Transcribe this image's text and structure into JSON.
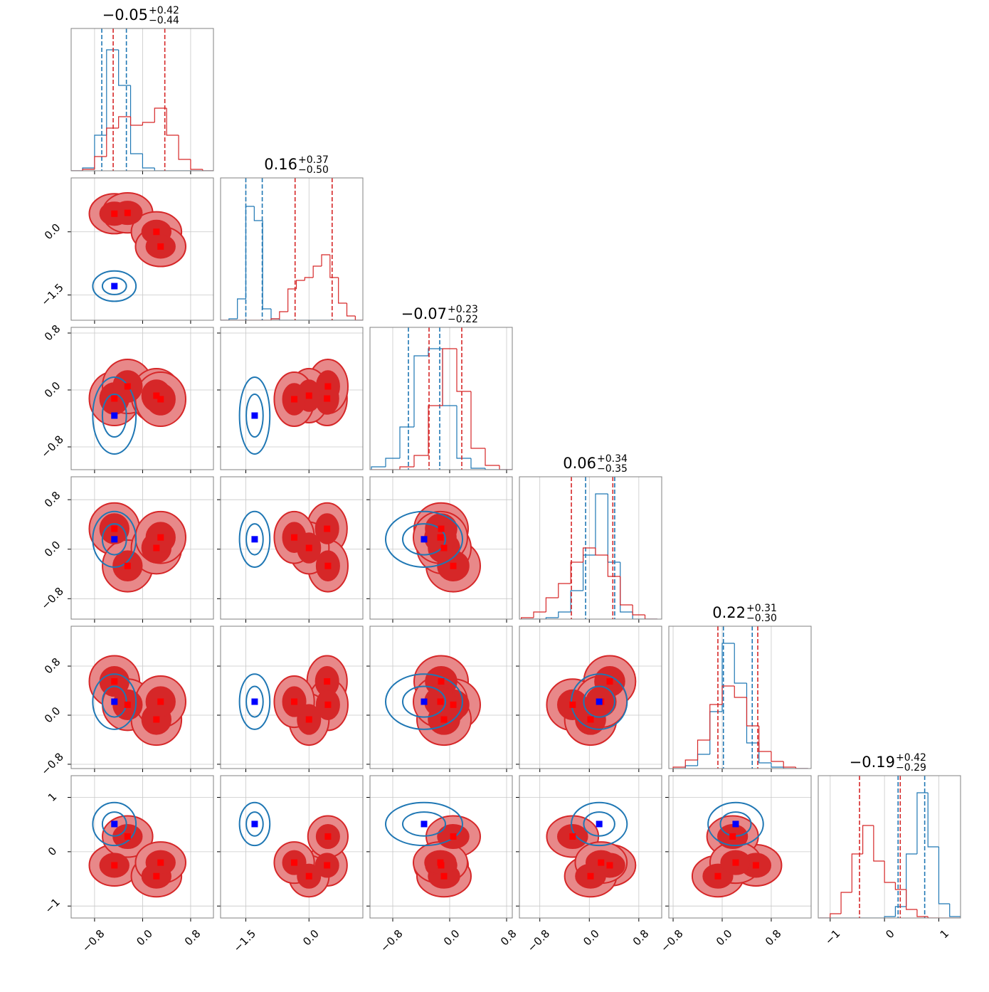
{
  "chart_data": {
    "type": "corner",
    "ylim": [
      0,
      100
    ],
    "params": [
      {
        "xlim": [
          -1.19,
          1.18
        ],
        "ticks": [
          {
            "value": -0.8,
            "label": "−0.8"
          },
          {
            "value": 0,
            "label": "0.0"
          },
          0.8
        ],
        "title": {
          "value": "−0.05",
          "plus": "+0.42",
          "minus": "−0.44"
        },
        "bins": [
          -1.2,
          -1.0,
          -0.8,
          -0.6,
          -0.4,
          -0.2,
          0,
          0.2,
          0.4,
          0.6,
          0.8,
          1.0,
          1.2
        ]
      },
      {
        "xlim": [
          -2.1,
          1.28
        ],
        "ticks": [
          {
            "value": -1.5,
            "label": "−1.5"
          },
          {
            "value": 0,
            "label": "0.0"
          }
        ],
        "title": {
          "value": "0.16",
          "plus": "+0.37",
          "minus": "−0.50"
        },
        "bins": [
          -2.1,
          -1.9,
          -1.7,
          -1.5,
          -1.3,
          -1.1,
          -0.9,
          -0.7,
          -0.5,
          -0.3,
          -0.1,
          0.1,
          0.3,
          0.5,
          0.7,
          0.9,
          1.1,
          1.3
        ]
      },
      {
        "xlim": [
          -1.12,
          0.88
        ],
        "ticks": [
          {
            "value": -0.8,
            "label": "−0.8"
          },
          {
            "value": 0,
            "label": "0.0"
          },
          0.8
        ],
        "title": {
          "value": "−0.07",
          "plus": "+0.23",
          "minus": "−0.22"
        },
        "bins": [
          -1.1,
          -0.9,
          -0.7,
          -0.5,
          -0.3,
          -0.1,
          0.1,
          0.3,
          0.5,
          0.7,
          0.9
        ]
      },
      {
        "xlim": [
          -1.13,
          1.17
        ],
        "ticks": [
          {
            "value": -0.8,
            "label": "−0.8"
          },
          {
            "value": 0,
            "label": "0.0"
          },
          0.8
        ],
        "title": {
          "value": "0.06",
          "plus": "+0.34",
          "minus": "−0.35"
        },
        "bins": [
          -1.1,
          -0.9,
          -0.7,
          -0.5,
          -0.3,
          -0.1,
          0.1,
          0.3,
          0.5,
          0.7,
          0.9,
          1.1
        ]
      },
      {
        "xlim": [
          -0.87,
          1.45
        ],
        "ticks": [
          {
            "value": -0.8,
            "label": "−0.8"
          },
          {
            "value": 0,
            "label": "0.0"
          },
          0.8
        ],
        "title": {
          "value": "0.22",
          "plus": "+0.31",
          "minus": "−0.30"
        },
        "bins": [
          -0.8,
          -0.6,
          -0.4,
          -0.2,
          0,
          0.2,
          0.4,
          0.6,
          0.8,
          1.0,
          1.2,
          1.4
        ]
      },
      {
        "xlim": [
          -1.22,
          1.4
        ],
        "ticks": [
          {
            "value": -1,
            "label": "−1"
          },
          0,
          1
        ],
        "title": {
          "value": "−0.19",
          "plus": "+0.42",
          "minus": "−0.29"
        },
        "bins": [
          -1.2,
          -1.0,
          -0.8,
          -0.6,
          -0.4,
          -0.2,
          0,
          0.2,
          0.4,
          0.6,
          0.8,
          1.0,
          1.2,
          1.4
        ]
      }
    ],
    "series": [
      {
        "color": "#1f77b4",
        "hist": [
          [
            0,
            2,
            25,
            85,
            60,
            12,
            2,
            0,
            0,
            0,
            0,
            0
          ],
          [
            0,
            1,
            15,
            80,
            70,
            8,
            1,
            0,
            0,
            0,
            0,
            0,
            0,
            0,
            0,
            0,
            0
          ],
          [
            2,
            8,
            30,
            80,
            85,
            45,
            8,
            1,
            0,
            0
          ],
          [
            0,
            0,
            1,
            5,
            20,
            45,
            88,
            40,
            5,
            0,
            0
          ],
          [
            0,
            2,
            10,
            40,
            88,
            60,
            18,
            4,
            1,
            0,
            0
          ],
          [
            0,
            0,
            0,
            0,
            0,
            0,
            1,
            8,
            45,
            88,
            50,
            10,
            1
          ]
        ],
        "quantiles": [
          [
            -0.68,
            -0.27
          ],
          [
            -1.5,
            -1.11
          ],
          [
            -0.58,
            -0.14
          ],
          [
            -0.06,
            0.41
          ],
          [
            0.02,
            0.49
          ],
          [
            0.25,
            0.74
          ]
        ],
        "points": [
          [
            -0.47,
            -1.29,
            -0.36,
            0.16,
            0.22,
            0.51
          ]
        ],
        "sigma": [
          0.2,
          0.2,
          0.3,
          0.25,
          0.25,
          0.22
        ]
      },
      {
        "color": "#d62728",
        "hist": [
          [
            0,
            1,
            10,
            30,
            38,
            32,
            34,
            44,
            25,
            8,
            1,
            0
          ],
          [
            0,
            0,
            0,
            0,
            0,
            0,
            1,
            6,
            22,
            28,
            30,
            38,
            46,
            30,
            12,
            3,
            0
          ],
          [
            0,
            0,
            2,
            10,
            45,
            85,
            55,
            15,
            3,
            0
          ],
          [
            1,
            5,
            15,
            25,
            40,
            50,
            45,
            30,
            10,
            3,
            0
          ],
          [
            1,
            6,
            20,
            45,
            58,
            50,
            30,
            12,
            5,
            1,
            0
          ],
          [
            0,
            3,
            18,
            45,
            65,
            40,
            25,
            20,
            6,
            1,
            0,
            0,
            0
          ]
        ],
        "quantiles": [
          [
            -0.49,
            0.37
          ],
          [
            -0.33,
            0.55
          ],
          [
            -0.29,
            0.17
          ],
          [
            -0.29,
            0.38
          ],
          [
            -0.07,
            0.58
          ],
          [
            -0.46,
            0.29
          ]
        ],
        "points": [
          [
            -0.47,
            0.43,
            -0.12,
            0.33,
            0.55,
            -0.25
          ],
          [
            -0.25,
            0.45,
            0.05,
            -0.27,
            0.17,
            0.28
          ],
          [
            0.23,
            0.0,
            -0.08,
            0.02,
            -0.07,
            -0.45
          ],
          [
            0.3,
            -0.35,
            -0.13,
            0.19,
            0.22,
            -0.2
          ]
        ],
        "sigma": [
          0.22,
          0.25,
          0.2,
          0.22,
          0.22,
          0.2
        ]
      }
    ]
  }
}
